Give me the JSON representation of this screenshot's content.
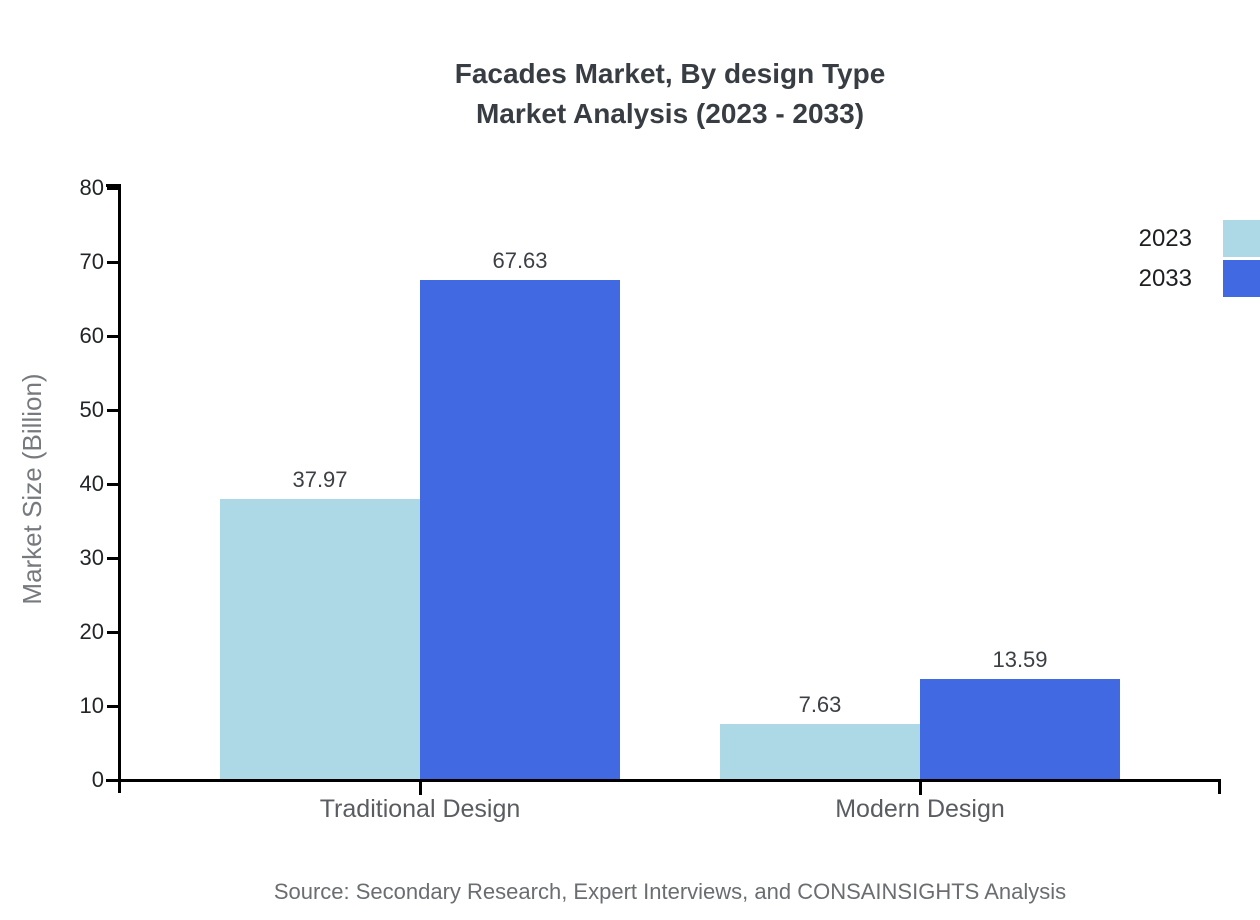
{
  "title": {
    "line1": "Facades Market, By design Type",
    "line2": "Market Analysis (2023 - 2033)"
  },
  "source": "Source: Secondary Research, Expert Interviews, and CONSAINSIGHTS Analysis",
  "chart_data": {
    "type": "bar",
    "title": "Facades Market, By design Type Market Analysis (2023 - 2033)",
    "categories": [
      "Traditional Design",
      "Modern Design"
    ],
    "series": [
      {
        "name": "2023",
        "color": "#add8e6",
        "values": [
          37.97,
          7.63
        ]
      },
      {
        "name": "2033",
        "color": "#4169e1",
        "values": [
          67.63,
          13.59
        ]
      }
    ],
    "xlabel": "",
    "ylabel": "Market Size (Billion)",
    "ylim": [
      0,
      80
    ],
    "yticks": [
      0,
      10,
      20,
      30,
      40,
      50,
      60,
      70,
      80
    ],
    "grid": false,
    "legend_position": "top-right",
    "value_labels": true
  }
}
